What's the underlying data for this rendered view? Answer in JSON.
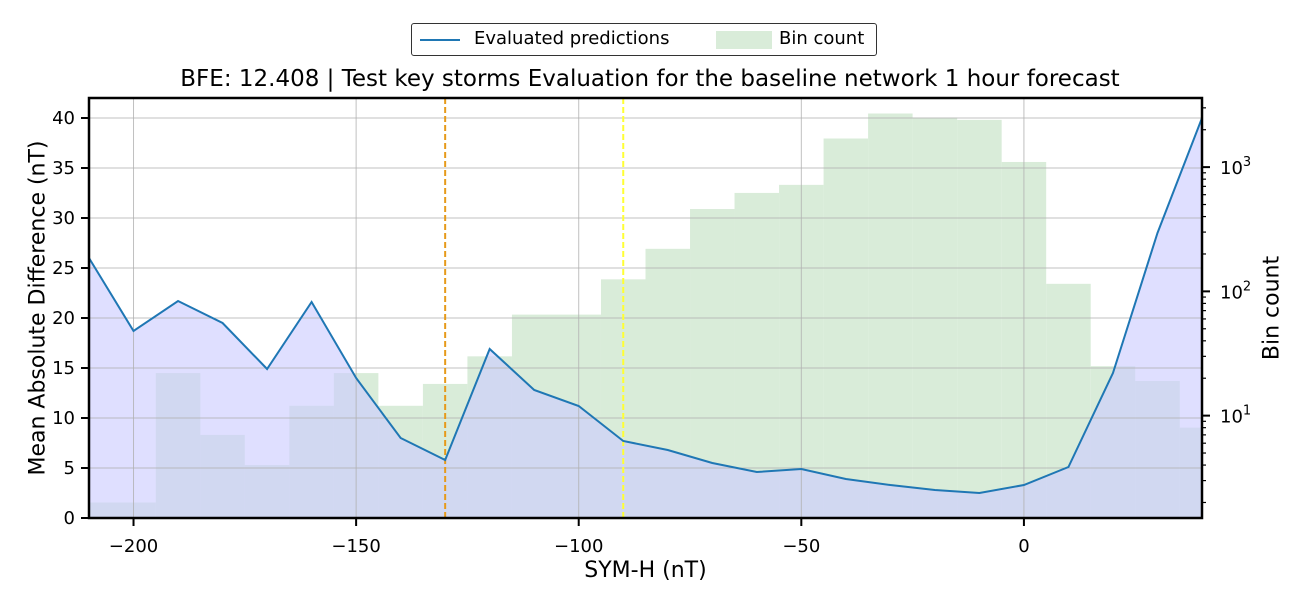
{
  "chart_data": {
    "type": "line",
    "title": "BFE: 12.408 | Test key storms Evaluation for the baseline network 1 hour forecast",
    "xlabel": "SYM-H (nT)",
    "ylabel": "Mean Absolute Difference (nT)",
    "y2label": "Bin count",
    "xlim": [
      -210,
      40
    ],
    "ylim": [
      0,
      42
    ],
    "y2lim": [
      1.5,
      3600
    ],
    "y2scale": "log",
    "grid": true,
    "legend_position": "top-center, above plot",
    "x_ticks": [
      -200,
      -150,
      -100,
      -50,
      0
    ],
    "x_tick_labels": [
      "−200",
      "−150",
      "−100",
      "−50",
      "0"
    ],
    "y_ticks": [
      0,
      5,
      10,
      15,
      20,
      25,
      30,
      35,
      40
    ],
    "y_tick_labels": [
      "0",
      "5",
      "10",
      "15",
      "20",
      "25",
      "30",
      "35",
      "40"
    ],
    "y2_ticks": [
      10,
      100,
      1000
    ],
    "y2_tick_labels": [
      "10",
      "10",
      "10"
    ],
    "y2_tick_exponents": [
      "1",
      "2",
      "3"
    ],
    "vlines": [
      {
        "x": -130,
        "color": "#e69a1a"
      },
      {
        "x": -90,
        "color": "#ffff33"
      }
    ],
    "series": [
      {
        "name": "Evaluated predictions",
        "color": "#1f77b4",
        "fill_color": "#ccccff",
        "x": [
          -210,
          -200,
          -190,
          -180,
          -170,
          -160,
          -150,
          -140,
          -130,
          -120,
          -110,
          -100,
          -90,
          -80,
          -70,
          -60,
          -50,
          -40,
          -30,
          -20,
          -10,
          0,
          10,
          20,
          30,
          40
        ],
        "values": [
          26,
          18.7,
          21.7,
          19.5,
          14.9,
          21.6,
          14.0,
          8.0,
          5.8,
          16.9,
          12.8,
          11.2,
          7.7,
          6.8,
          5.5,
          4.6,
          4.9,
          3.9,
          3.3,
          2.8,
          2.5,
          3.3,
          5.1,
          14.5,
          28.5,
          40
        ]
      },
      {
        "name": "Bin count",
        "type": "histogram",
        "color": "#d9ecd9",
        "bins": [
          {
            "x0": -210,
            "x1": -195,
            "count": 2
          },
          {
            "x0": -195,
            "x1": -185,
            "count": 22
          },
          {
            "x0": -185,
            "x1": -175,
            "count": 7
          },
          {
            "x0": -175,
            "x1": -165,
            "count": 4
          },
          {
            "x0": -165,
            "x1": -155,
            "count": 12
          },
          {
            "x0": -155,
            "x1": -145,
            "count": 22
          },
          {
            "x0": -145,
            "x1": -135,
            "count": 12
          },
          {
            "x0": -135,
            "x1": -125,
            "count": 18
          },
          {
            "x0": -125,
            "x1": -115,
            "count": 30
          },
          {
            "x0": -115,
            "x1": -95,
            "count": 65
          },
          {
            "x0": -95,
            "x1": -85,
            "count": 125
          },
          {
            "x0": -85,
            "x1": -75,
            "count": 220
          },
          {
            "x0": -75,
            "x1": -65,
            "count": 460
          },
          {
            "x0": -65,
            "x1": -55,
            "count": 620
          },
          {
            "x0": -55,
            "x1": -45,
            "count": 720
          },
          {
            "x0": -45,
            "x1": -35,
            "count": 1700
          },
          {
            "x0": -35,
            "x1": -25,
            "count": 2700
          },
          {
            "x0": -25,
            "x1": -15,
            "count": 2500
          },
          {
            "x0": -15,
            "x1": -5,
            "count": 2400
          },
          {
            "x0": -5,
            "x1": 5,
            "count": 1100
          },
          {
            "x0": 5,
            "x1": 15,
            "count": 115
          },
          {
            "x0": 15,
            "x1": 25,
            "count": 25
          },
          {
            "x0": 25,
            "x1": 35,
            "count": 19
          },
          {
            "x0": 35,
            "x1": 40,
            "count": 8
          }
        ]
      }
    ]
  }
}
